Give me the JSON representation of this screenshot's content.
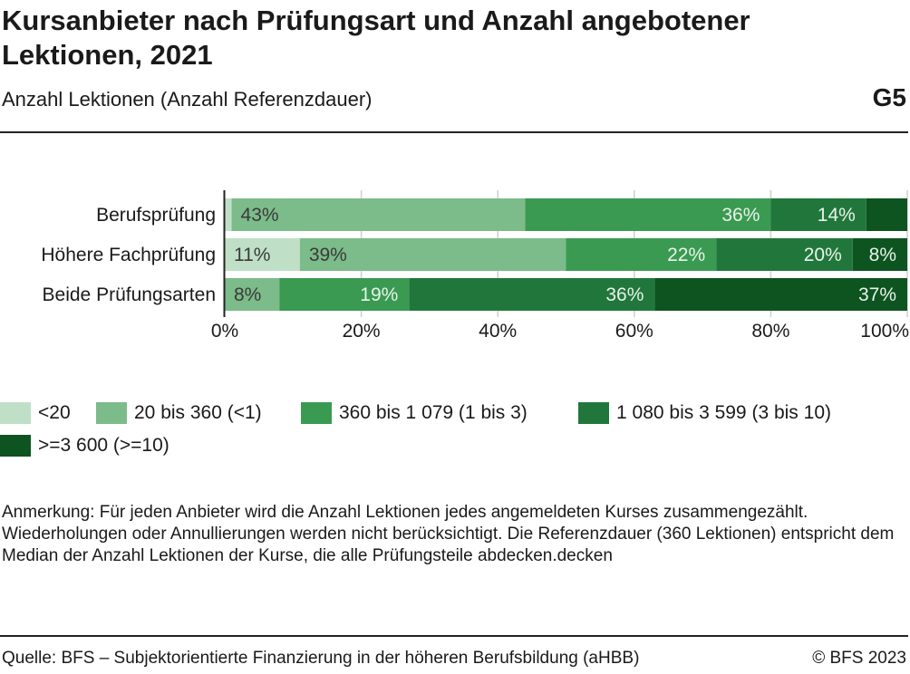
{
  "header": {
    "title": "Kursanbieter nach Prüfungsart und Anzahl angebotener Lektionen, 2021",
    "subtitle": "Anzahl Lektionen (Anzahl Referenzdauer)",
    "code": "G5"
  },
  "chart_data": {
    "type": "bar",
    "orientation": "horizontal",
    "stacked": true,
    "categories": [
      "Berufsprüfung",
      "Höhere Fachprüfung",
      "Beide Prüfungsarten"
    ],
    "series": [
      {
        "name": "<20",
        "color": "#bfe0c7",
        "values": [
          0.01,
          0.11,
          0
        ],
        "labels": [
          "",
          "11%",
          ""
        ]
      },
      {
        "name": "20 bis 360 (<1)",
        "color": "#7cbb8a",
        "values": [
          0.43,
          0.39,
          0.08
        ],
        "labels": [
          "43%",
          "39%",
          "8%"
        ]
      },
      {
        "name": "360 bis 1 079 (1 bis 3)",
        "color": "#3a9a52",
        "values": [
          0.36,
          0.22,
          0.19
        ],
        "labels": [
          "36%",
          "22%",
          "19%"
        ]
      },
      {
        "name": "1 080 bis 3 599 (3 bis 10)",
        "color": "#21773b",
        "values": [
          0.14,
          0.2,
          0.36
        ],
        "labels": [
          "14%",
          "20%",
          "36%"
        ]
      },
      {
        "name": ">=3 600 (>=10)",
        "color": "#0d5420",
        "values": [
          0.06,
          0.08,
          0.37
        ],
        "labels": [
          "",
          "8%",
          "37%"
        ]
      }
    ],
    "xlim": [
      0,
      1
    ],
    "xticks": [
      "0%",
      "20%",
      "40%",
      "60%",
      "80%",
      "100%"
    ],
    "grid": true,
    "legend_position": "bottom"
  },
  "note": "Anmerkung: Für jeden Anbieter wird die Anzahl Lektionen jedes angemeldeten Kurses zusammengezählt. Wiederholungen oder Annullierungen werden nicht berücksichtigt. Die Referenzdauer (360 Lektionen) entspricht dem Median der Anzahl Lektionen der Kurse, die alle Prüfungsteile abdecken.decken",
  "footer": {
    "source": "Quelle: BFS – Subjektorientierte Finanzierung in der höheren Berufsbildung (aHBB)",
    "copyright": "© BFS 2023"
  }
}
